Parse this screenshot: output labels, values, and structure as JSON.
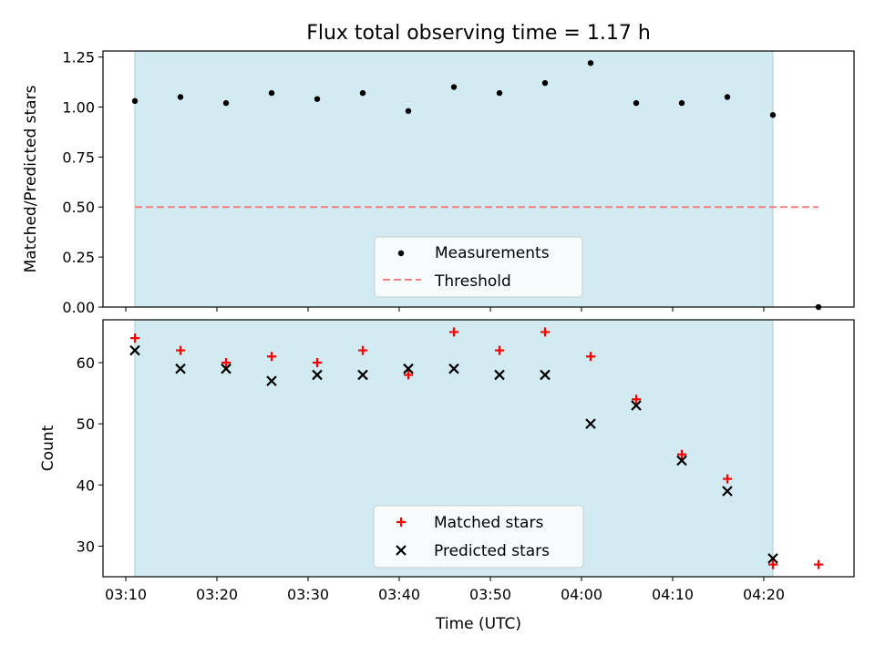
{
  "title": "Flux total observing time = 1.17 h",
  "colors": {
    "shade": "#add8e6",
    "measurement": "#000000",
    "threshold": "#f08080",
    "matched": "#ff0000",
    "predicted": "#000000"
  },
  "chart_data": [
    {
      "type": "scatter",
      "ylabel": "Matched/Predicted stars",
      "ylim": [
        0,
        1.28
      ],
      "yticks": [
        0.0,
        0.25,
        0.5,
        0.75,
        1.0,
        1.25
      ],
      "ytick_labels": [
        "0.00",
        "0.25",
        "0.50",
        "0.75",
        "1.00",
        "1.25"
      ],
      "observing_window": [
        "03:11",
        "04:21"
      ],
      "legend_position": "lower center",
      "series": [
        {
          "name": "Measurements",
          "marker": "dot",
          "x": [
            "03:11",
            "03:16",
            "03:21",
            "03:26",
            "03:31",
            "03:36",
            "03:41",
            "03:46",
            "03:51",
            "03:56",
            "04:01",
            "04:06",
            "04:11",
            "04:16",
            "04:21",
            "04:26"
          ],
          "y": [
            1.03,
            1.05,
            1.02,
            1.07,
            1.04,
            1.07,
            0.98,
            1.1,
            1.07,
            1.12,
            1.22,
            1.02,
            1.02,
            1.05,
            0.96,
            0.0
          ]
        },
        {
          "name": "Threshold",
          "marker": "dashed-line",
          "x": [
            "03:11",
            "04:26"
          ],
          "y": [
            0.5,
            0.5
          ]
        }
      ]
    },
    {
      "type": "scatter",
      "xlabel": "Time (UTC)",
      "ylabel": "Count",
      "ylim": [
        25,
        67
      ],
      "yticks": [
        30,
        40,
        50,
        60
      ],
      "xticks": [
        "03:10",
        "03:20",
        "03:30",
        "03:40",
        "03:50",
        "04:00",
        "04:10",
        "04:20"
      ],
      "observing_window": [
        "03:11",
        "04:21"
      ],
      "legend_position": "lower center",
      "series": [
        {
          "name": "Matched stars",
          "marker": "plus",
          "x": [
            "03:11",
            "03:16",
            "03:21",
            "03:26",
            "03:31",
            "03:36",
            "03:41",
            "03:46",
            "03:51",
            "03:56",
            "04:01",
            "04:06",
            "04:11",
            "04:16",
            "04:21",
            "04:26"
          ],
          "y": [
            64,
            62,
            60,
            61,
            60,
            62,
            58,
            65,
            62,
            65,
            61,
            54,
            45,
            41,
            27,
            27
          ]
        },
        {
          "name": "Predicted stars",
          "marker": "x",
          "x": [
            "03:11",
            "03:16",
            "03:21",
            "03:26",
            "03:31",
            "03:36",
            "03:41",
            "03:46",
            "03:51",
            "03:56",
            "04:01",
            "04:06",
            "04:11",
            "04:16",
            "04:21"
          ],
          "y": [
            62,
            59,
            59,
            57,
            58,
            58,
            59,
            59,
            58,
            58,
            50,
            53,
            44,
            39,
            28
          ]
        }
      ]
    }
  ]
}
